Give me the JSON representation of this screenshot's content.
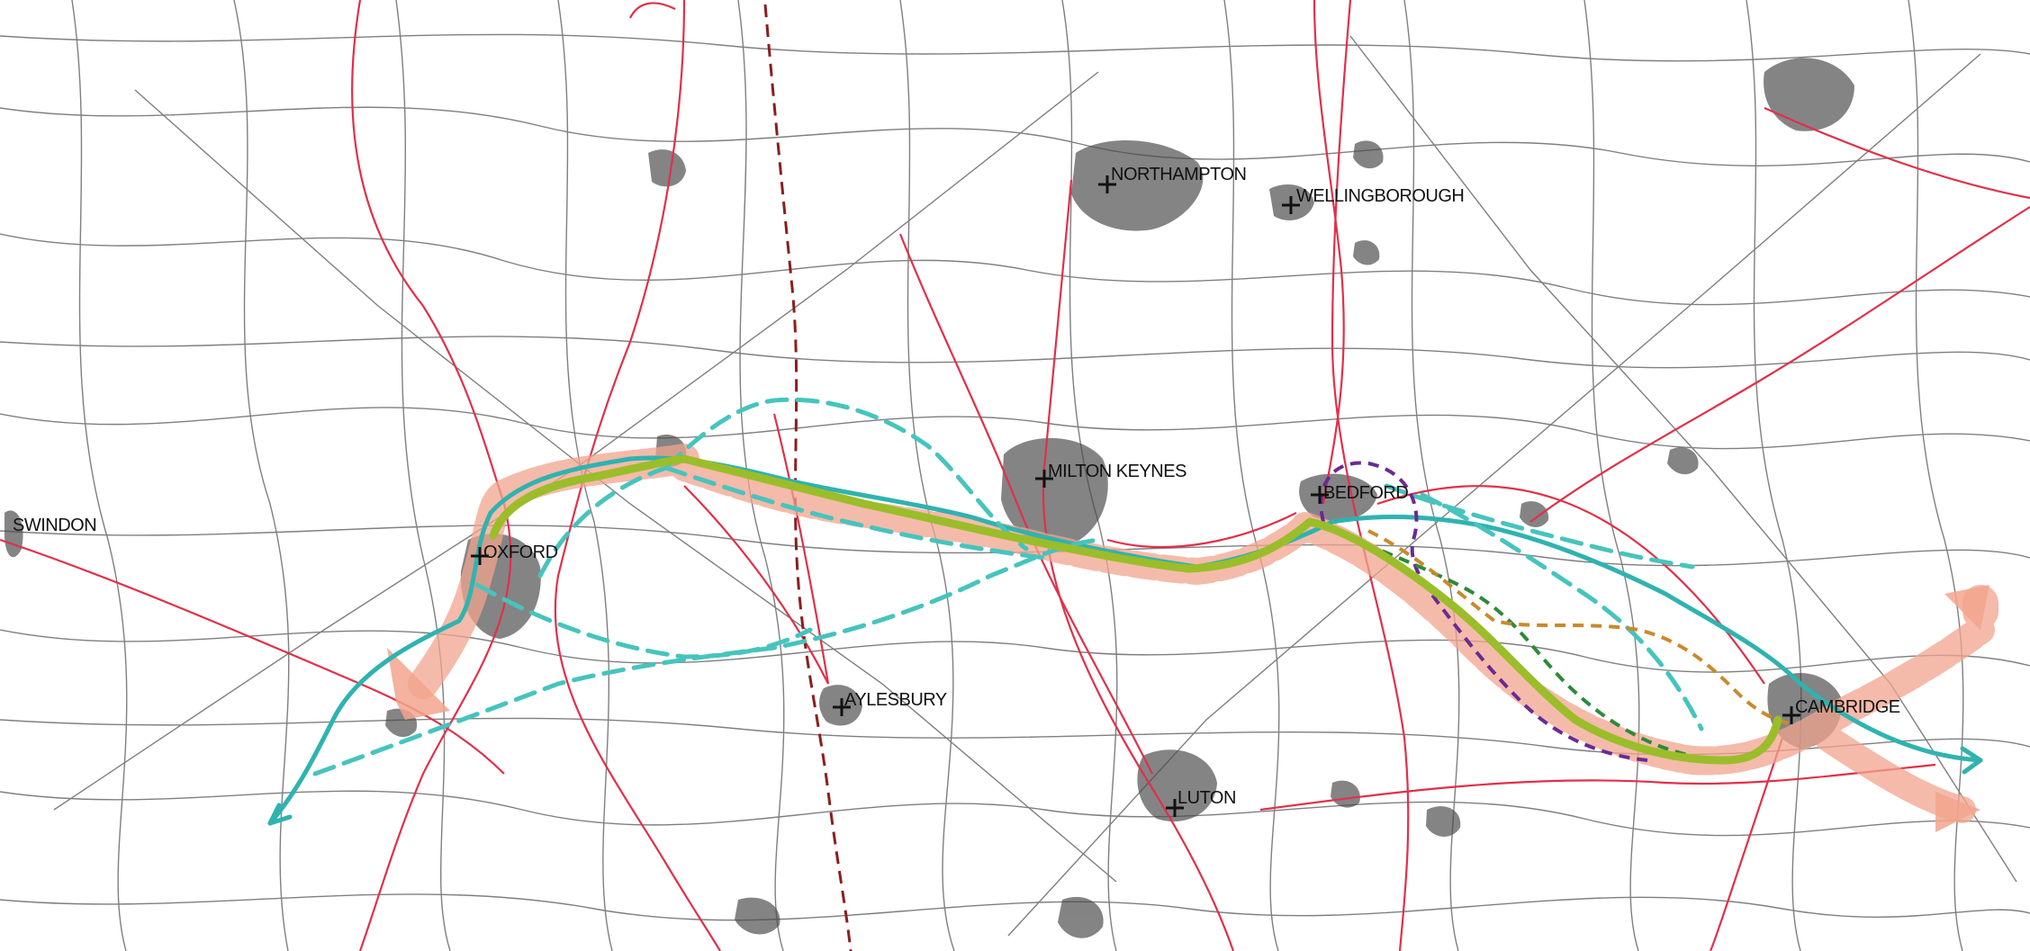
{
  "map": {
    "towns": [
      {
        "id": "swindon",
        "label": "SWINDON",
        "marker": false
      },
      {
        "id": "oxford",
        "label": "OXFORD",
        "marker": true
      },
      {
        "id": "northampton",
        "label": "NORTHAMPTON",
        "marker": true
      },
      {
        "id": "wellingborough",
        "label": "WELLINGBOROUGH",
        "marker": true
      },
      {
        "id": "milton-keynes",
        "label": "MILTON KEYNES",
        "marker": true
      },
      {
        "id": "bedford",
        "label": "BEDFORD",
        "marker": true
      },
      {
        "id": "aylesbury",
        "label": "AYLESBURY",
        "marker": true
      },
      {
        "id": "luton",
        "label": "LUTON",
        "marker": true
      },
      {
        "id": "cambridge",
        "label": "CAMBRIDGE",
        "marker": true
      }
    ],
    "layers": [
      {
        "name": "background-roads",
        "color": "#4a4a4a"
      },
      {
        "name": "major-roads",
        "color": "#e0304a"
      },
      {
        "name": "urban-areas",
        "color": "#6b6b6b"
      },
      {
        "name": "corridor-band",
        "color": "#f2a48e"
      },
      {
        "name": "route-green",
        "color": "#9bbd2a"
      },
      {
        "name": "route-teal",
        "color": "#2fb3b0"
      },
      {
        "name": "route-teal-dashed",
        "color": "#46c4bd"
      },
      {
        "name": "route-purple-dashed",
        "color": "#6a2a94"
      },
      {
        "name": "route-darkgreen-dashed",
        "color": "#2d8a3a"
      },
      {
        "name": "route-orange-dashed",
        "color": "#c98a2b"
      },
      {
        "name": "route-maroon-dashed",
        "color": "#8b1e1e"
      }
    ]
  }
}
